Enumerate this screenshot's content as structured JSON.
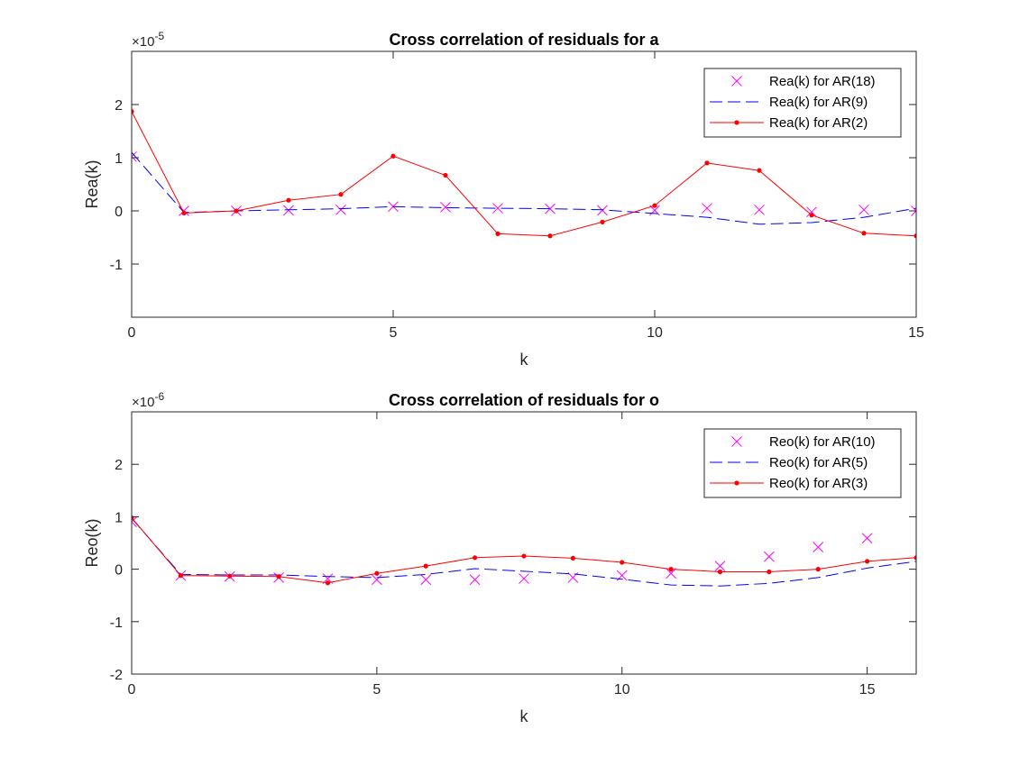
{
  "chart_data": [
    {
      "type": "line",
      "title": "Cross correlation of residuals for a",
      "xlabel": "k",
      "ylabel": "Rea(k)",
      "y_exponent": "×10",
      "y_exponent_power": "-5",
      "xlim": [
        0,
        15
      ],
      "ylim": [
        -2,
        3
      ],
      "xticks": [
        "0",
        "5",
        "10",
        "15"
      ],
      "xtick_values": [
        0,
        5,
        10,
        15
      ],
      "yticks": [
        "-1",
        "0",
        "1",
        "2"
      ],
      "ytick_values": [
        -1,
        0,
        1,
        2
      ],
      "grid": false,
      "legend_position": "top-right",
      "series": [
        {
          "name": "Rea(k) for AR(18)",
          "style": "marker-x",
          "color": "#ff00ff",
          "x": [
            0,
            1,
            2,
            3,
            4,
            5,
            6,
            7,
            8,
            9,
            10,
            11,
            12,
            13,
            14,
            15
          ],
          "y": [
            1.02,
            0,
            0,
            0.01,
            0.02,
            0.08,
            0.07,
            0.05,
            0.04,
            0.01,
            0.01,
            0.05,
            0.02,
            -0.02,
            0.02,
            0
          ]
        },
        {
          "name": "Rea(k) for AR(9)",
          "style": "dashed",
          "color": "#0000ff",
          "x": [
            0,
            1,
            2,
            3,
            4,
            5,
            6,
            7,
            8,
            9,
            10,
            11,
            12,
            13,
            14,
            15
          ],
          "y": [
            1.1,
            -0.03,
            0,
            0.02,
            0.04,
            0.08,
            0.06,
            0.05,
            0.04,
            0.02,
            -0.05,
            -0.12,
            -0.25,
            -0.22,
            -0.12,
            0.05
          ]
        },
        {
          "name": "Rea(k) for AR(2)",
          "style": "line-dot",
          "color": "#ff0000",
          "x": [
            0,
            1,
            2,
            3,
            4,
            5,
            6,
            7,
            8,
            9,
            10,
            11,
            12,
            13,
            14,
            15
          ],
          "y": [
            1.87,
            -0.04,
            0,
            0.2,
            0.31,
            1.03,
            0.67,
            -0.43,
            -0.47,
            -0.21,
            0.1,
            0.9,
            0.76,
            -0.08,
            -0.42,
            -0.47
          ]
        }
      ]
    },
    {
      "type": "line",
      "title": "Cross correlation of residuals for o",
      "xlabel": "k",
      "ylabel": "Reo(k)",
      "y_exponent": "×10",
      "y_exponent_power": "-6",
      "xlim": [
        0,
        16
      ],
      "ylim": [
        -2,
        3
      ],
      "xticks": [
        "0",
        "5",
        "10",
        "15"
      ],
      "xtick_values": [
        0,
        5,
        10,
        15
      ],
      "yticks": [
        "-2",
        "-1",
        "0",
        "1",
        "2"
      ],
      "ytick_values": [
        -2,
        -1,
        0,
        1,
        2
      ],
      "grid": false,
      "legend_position": "top-right",
      "series": [
        {
          "name": "Reo(k) for AR(10)",
          "style": "marker-x",
          "color": "#ff00ff",
          "x": [
            0,
            1,
            2,
            3,
            4,
            5,
            6,
            7,
            8,
            9,
            10,
            11,
            12,
            13,
            14,
            15
          ],
          "y": [
            0.9,
            -0.12,
            -0.14,
            -0.16,
            -0.18,
            -0.2,
            -0.2,
            -0.2,
            -0.18,
            -0.16,
            -0.12,
            -0.08,
            0.06,
            0.24,
            0.42,
            0.59
          ]
        },
        {
          "name": "Reo(k) for AR(5)",
          "style": "dashed",
          "color": "#0000ff",
          "x": [
            0,
            1,
            2,
            3,
            4,
            5,
            6,
            7,
            8,
            9,
            10,
            11,
            12,
            13,
            14,
            15,
            16
          ],
          "y": [
            0.97,
            -0.1,
            -0.11,
            -0.11,
            -0.14,
            -0.16,
            -0.1,
            0.01,
            -0.04,
            -0.09,
            -0.19,
            -0.3,
            -0.32,
            -0.27,
            -0.16,
            0.02,
            0.15
          ]
        },
        {
          "name": "Reo(k) for AR(3)",
          "style": "line-dot",
          "color": "#ff0000",
          "x": [
            0,
            1,
            2,
            3,
            4,
            5,
            6,
            7,
            8,
            9,
            10,
            11,
            12,
            13,
            14,
            15,
            16
          ],
          "y": [
            0.98,
            -0.12,
            -0.13,
            -0.14,
            -0.26,
            -0.08,
            0.06,
            0.22,
            0.25,
            0.21,
            0.13,
            0,
            -0.05,
            -0.05,
            0,
            0.15,
            0.22
          ]
        }
      ]
    }
  ]
}
